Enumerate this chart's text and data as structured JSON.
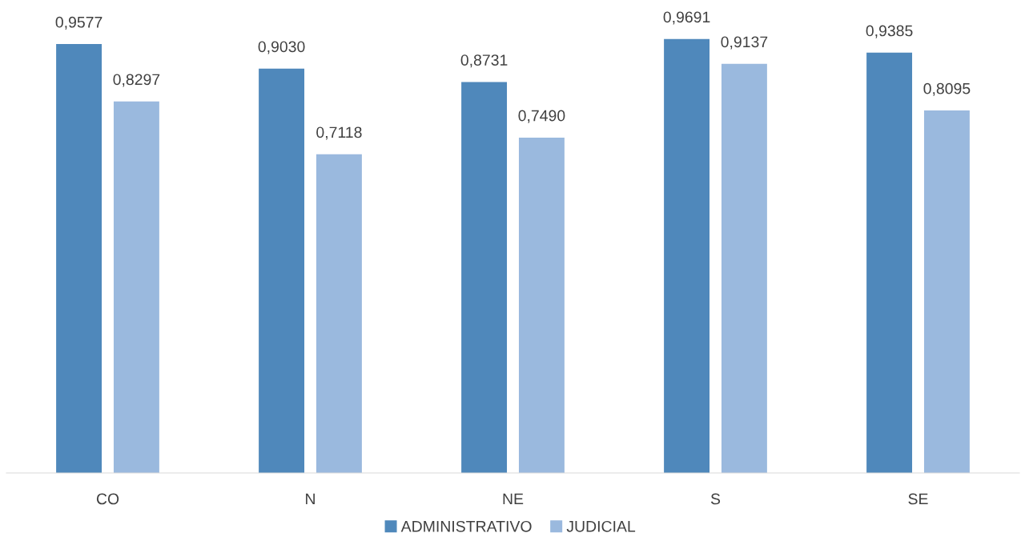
{
  "chart_data": {
    "type": "bar",
    "categories": [
      "CO",
      "N",
      "NE",
      "S",
      "SE"
    ],
    "series": [
      {
        "name": "ADMINISTRATIVO",
        "color": "#4f88bb",
        "values": [
          0.9577,
          0.903,
          0.8731,
          0.9691,
          0.9385
        ],
        "value_labels": [
          "0,9577",
          "0,9030",
          "0,8731",
          "0,9691",
          "0,9385"
        ]
      },
      {
        "name": "JUDICIAL",
        "color": "#9ab9de",
        "values": [
          0.8297,
          0.7118,
          0.749,
          0.9137,
          0.8095
        ],
        "value_labels": [
          "0,8297",
          "0,7118",
          "0,7490",
          "0,9137",
          "0,8095"
        ]
      }
    ],
    "legend": "bottom",
    "grid": false,
    "tick_labels": "x"
  }
}
